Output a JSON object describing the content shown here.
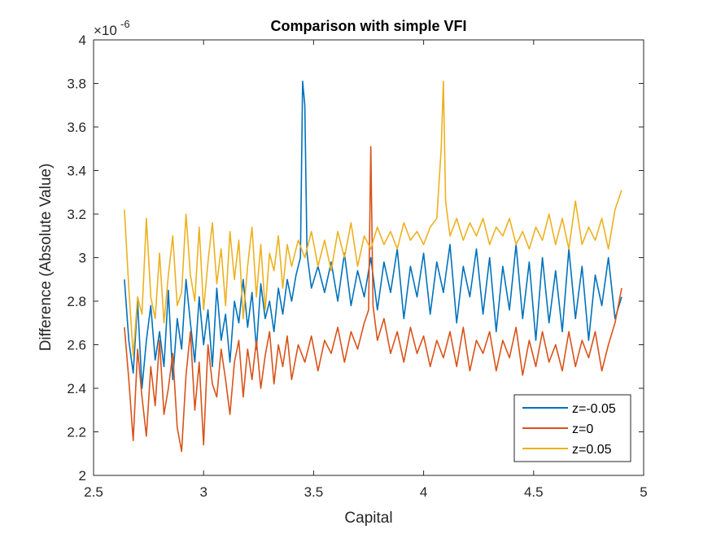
{
  "chart_data": {
    "type": "line",
    "title": "Comparison with simple VFI",
    "xlabel": "Capital",
    "ylabel": "Difference (Absolute Value)",
    "exponent_base": "×10",
    "exponent_power": "-6",
    "xlim": [
      2.5,
      5
    ],
    "ylim": [
      2,
      4
    ],
    "xticks": [
      2.5,
      3,
      3.5,
      4,
      4.5,
      5
    ],
    "xtick_labels": [
      "2.5",
      "3",
      "3.5",
      "4",
      "4.5",
      "5"
    ],
    "yticks": [
      2,
      2.2,
      2.4,
      2.6,
      2.8,
      3,
      3.2,
      3.4,
      3.6,
      3.8,
      4
    ],
    "ytick_labels": [
      "2",
      "2.2",
      "2.4",
      "2.6",
      "2.8",
      "3",
      "3.2",
      "3.4",
      "3.6",
      "3.8",
      "4"
    ],
    "legend_position": "bottom-right",
    "grid": false,
    "series": [
      {
        "name": "z=-0.05",
        "color": "#0072BD",
        "x": [
          2.64,
          2.66,
          2.68,
          2.7,
          2.72,
          2.74,
          2.76,
          2.78,
          2.8,
          2.82,
          2.84,
          2.86,
          2.88,
          2.9,
          2.92,
          2.94,
          2.96,
          2.98,
          3.0,
          3.02,
          3.04,
          3.06,
          3.08,
          3.1,
          3.12,
          3.14,
          3.16,
          3.18,
          3.2,
          3.22,
          3.24,
          3.26,
          3.28,
          3.3,
          3.32,
          3.34,
          3.36,
          3.38,
          3.4,
          3.42,
          3.44,
          3.45,
          3.46,
          3.47,
          3.49,
          3.52,
          3.55,
          3.58,
          3.61,
          3.64,
          3.67,
          3.7,
          3.73,
          3.76,
          3.79,
          3.82,
          3.85,
          3.88,
          3.91,
          3.94,
          3.97,
          4.0,
          4.03,
          4.06,
          4.09,
          4.12,
          4.15,
          4.18,
          4.21,
          4.24,
          4.27,
          4.3,
          4.33,
          4.36,
          4.39,
          4.42,
          4.45,
          4.48,
          4.51,
          4.54,
          4.57,
          4.6,
          4.63,
          4.66,
          4.69,
          4.72,
          4.75,
          4.78,
          4.81,
          4.84,
          4.87,
          4.9
        ],
        "values": [
          2.9,
          2.62,
          2.47,
          2.8,
          2.4,
          2.62,
          2.78,
          2.53,
          2.66,
          2.5,
          2.85,
          2.44,
          2.72,
          2.58,
          2.9,
          2.7,
          2.52,
          2.82,
          2.6,
          2.76,
          2.5,
          2.86,
          2.62,
          2.74,
          2.52,
          2.8,
          2.7,
          2.9,
          2.68,
          2.84,
          2.58,
          2.88,
          2.72,
          2.8,
          2.66,
          2.86,
          2.74,
          2.9,
          2.8,
          2.92,
          3.0,
          3.81,
          3.7,
          3.02,
          2.86,
          2.96,
          2.84,
          2.98,
          2.8,
          3.02,
          2.78,
          2.94,
          2.82,
          3.0,
          2.76,
          2.98,
          2.84,
          3.04,
          2.72,
          2.96,
          2.82,
          3.02,
          2.74,
          2.98,
          2.84,
          3.06,
          2.7,
          2.96,
          2.82,
          3.04,
          2.74,
          3.0,
          2.66,
          2.96,
          2.76,
          3.06,
          2.72,
          2.98,
          2.62,
          3.0,
          2.7,
          2.94,
          2.66,
          3.04,
          2.72,
          2.96,
          2.62,
          2.92,
          2.78,
          3.0,
          2.72,
          2.82
        ]
      },
      {
        "name": "z=0",
        "color": "#D95319",
        "x": [
          2.64,
          2.66,
          2.68,
          2.7,
          2.72,
          2.74,
          2.76,
          2.78,
          2.8,
          2.82,
          2.84,
          2.86,
          2.88,
          2.9,
          2.92,
          2.94,
          2.96,
          2.98,
          3.0,
          3.02,
          3.04,
          3.06,
          3.08,
          3.1,
          3.12,
          3.14,
          3.16,
          3.18,
          3.2,
          3.22,
          3.24,
          3.26,
          3.28,
          3.3,
          3.32,
          3.34,
          3.36,
          3.38,
          3.4,
          3.43,
          3.46,
          3.49,
          3.52,
          3.55,
          3.58,
          3.61,
          3.64,
          3.67,
          3.7,
          3.73,
          3.75,
          3.76,
          3.77,
          3.79,
          3.82,
          3.85,
          3.88,
          3.91,
          3.94,
          3.97,
          4.0,
          4.03,
          4.06,
          4.09,
          4.12,
          4.15,
          4.18,
          4.21,
          4.24,
          4.27,
          4.3,
          4.33,
          4.36,
          4.39,
          4.42,
          4.45,
          4.48,
          4.51,
          4.54,
          4.57,
          4.6,
          4.63,
          4.66,
          4.69,
          4.72,
          4.75,
          4.78,
          4.81,
          4.84,
          4.87,
          4.9
        ],
        "values": [
          2.68,
          2.44,
          2.16,
          2.58,
          2.36,
          2.18,
          2.5,
          2.32,
          2.62,
          2.28,
          2.4,
          2.56,
          2.22,
          2.11,
          2.46,
          2.66,
          2.3,
          2.52,
          2.14,
          2.6,
          2.42,
          2.36,
          2.58,
          2.44,
          2.28,
          2.52,
          2.62,
          2.36,
          2.58,
          2.44,
          2.62,
          2.4,
          2.55,
          2.66,
          2.42,
          2.6,
          2.5,
          2.64,
          2.44,
          2.6,
          2.52,
          2.64,
          2.48,
          2.62,
          2.56,
          2.68,
          2.52,
          2.66,
          2.58,
          2.7,
          2.76,
          3.51,
          2.78,
          2.62,
          2.72,
          2.56,
          2.66,
          2.52,
          2.68,
          2.56,
          2.64,
          2.5,
          2.62,
          2.54,
          2.66,
          2.5,
          2.68,
          2.48,
          2.62,
          2.56,
          2.66,
          2.48,
          2.62,
          2.54,
          2.68,
          2.46,
          2.62,
          2.5,
          2.66,
          2.52,
          2.6,
          2.48,
          2.66,
          2.5,
          2.62,
          2.54,
          2.66,
          2.48,
          2.6,
          2.7,
          2.86
        ]
      },
      {
        "name": "z=0.05",
        "color": "#EDB120",
        "x": [
          2.64,
          2.66,
          2.68,
          2.7,
          2.72,
          2.74,
          2.76,
          2.78,
          2.8,
          2.82,
          2.84,
          2.86,
          2.88,
          2.9,
          2.92,
          2.94,
          2.96,
          2.98,
          3.0,
          3.02,
          3.04,
          3.06,
          3.08,
          3.1,
          3.12,
          3.14,
          3.16,
          3.18,
          3.2,
          3.22,
          3.24,
          3.26,
          3.28,
          3.3,
          3.32,
          3.34,
          3.36,
          3.38,
          3.4,
          3.43,
          3.46,
          3.49,
          3.52,
          3.55,
          3.58,
          3.61,
          3.64,
          3.67,
          3.7,
          3.73,
          3.76,
          3.79,
          3.82,
          3.85,
          3.88,
          3.91,
          3.94,
          3.97,
          4.0,
          4.03,
          4.06,
          4.08,
          4.09,
          4.1,
          4.12,
          4.15,
          4.18,
          4.21,
          4.24,
          4.27,
          4.3,
          4.33,
          4.36,
          4.39,
          4.42,
          4.45,
          4.48,
          4.51,
          4.54,
          4.57,
          4.6,
          4.63,
          4.66,
          4.69,
          4.72,
          4.75,
          4.78,
          4.81,
          4.84,
          4.87,
          4.9
        ],
        "values": [
          3.22,
          2.86,
          2.55,
          2.82,
          2.74,
          3.18,
          2.82,
          2.72,
          3.02,
          2.7,
          2.92,
          3.1,
          2.78,
          2.84,
          3.2,
          2.92,
          2.8,
          3.14,
          2.76,
          2.98,
          3.16,
          2.88,
          3.04,
          2.78,
          3.12,
          2.9,
          3.08,
          2.72,
          2.96,
          3.14,
          2.82,
          3.06,
          2.76,
          3.02,
          2.94,
          3.1,
          2.86,
          3.06,
          2.96,
          3.08,
          3.0,
          3.12,
          2.96,
          3.08,
          2.94,
          3.12,
          3.0,
          3.16,
          2.96,
          3.1,
          3.04,
          3.14,
          3.06,
          3.12,
          3.04,
          3.16,
          3.08,
          3.12,
          3.06,
          3.14,
          3.18,
          3.5,
          3.81,
          3.26,
          3.1,
          3.18,
          3.08,
          3.16,
          3.1,
          3.18,
          3.06,
          3.14,
          3.1,
          3.18,
          3.06,
          3.12,
          3.04,
          3.14,
          3.08,
          3.2,
          3.06,
          3.18,
          3.04,
          3.26,
          3.06,
          3.14,
          3.08,
          3.18,
          3.04,
          3.22,
          3.31
        ]
      }
    ]
  }
}
